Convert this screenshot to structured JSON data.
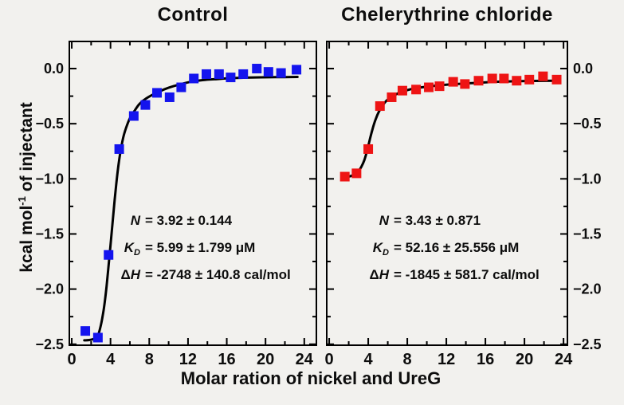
{
  "figure": {
    "background": "#f2f1ee",
    "axis_color": "#000000",
    "text_color": "#0d0d0d"
  },
  "xlabel": "Molar ration of nickel and UreG",
  "ylabel_parts": {
    "pre": "kcal mol",
    "sup": "-1",
    "post": " of injectant"
  },
  "chart_data": [
    {
      "type": "scatter",
      "title": "Control",
      "marker": "square",
      "marker_color": "#1414ee",
      "fit_line_color": "#000000",
      "xlim": [
        -0.25,
        25.25
      ],
      "ylim": [
        -2.509,
        0.246
      ],
      "x_ticks": {
        "major_values": [
          0,
          4,
          8,
          12,
          16,
          20,
          24
        ],
        "major_labels": [
          "0",
          "4",
          "8",
          "12",
          "16",
          "20",
          "24"
        ],
        "minor_values": [
          2,
          6,
          10,
          14,
          18,
          22
        ]
      },
      "y_ticks": {
        "labels_side": "left",
        "major_values": [
          0,
          -0.5,
          -1.0,
          -1.5,
          -2.0,
          -2.5
        ],
        "major_labels": [
          "0.0",
          "−0.5",
          "−1.0",
          "−1.5",
          "−2.0",
          "−2.5"
        ],
        "minor_values": [
          -0.25,
          -0.75,
          -1.25,
          -1.75,
          -2.25
        ]
      },
      "points": [
        [
          1.4,
          -2.38
        ],
        [
          2.7,
          -2.44
        ],
        [
          3.8,
          -1.69
        ],
        [
          4.9,
          -0.73
        ],
        [
          6.4,
          -0.43
        ],
        [
          7.6,
          -0.33
        ],
        [
          8.8,
          -0.22
        ],
        [
          10.1,
          -0.26
        ],
        [
          11.3,
          -0.17
        ],
        [
          12.6,
          -0.09
        ],
        [
          13.9,
          -0.05
        ],
        [
          15.2,
          -0.05
        ],
        [
          16.4,
          -0.08
        ],
        [
          17.7,
          -0.05
        ],
        [
          19.1,
          0.0
        ],
        [
          20.3,
          -0.03
        ],
        [
          21.6,
          -0.04
        ],
        [
          23.2,
          -0.01
        ]
      ],
      "fit_curve": [
        [
          1.3,
          -2.465
        ],
        [
          1.8,
          -2.462
        ],
        [
          2.3,
          -2.45
        ],
        [
          2.7,
          -2.42
        ],
        [
          3.0,
          -2.33
        ],
        [
          3.2,
          -2.24
        ],
        [
          3.4,
          -2.12
        ],
        [
          3.6,
          -1.97
        ],
        [
          3.8,
          -1.79
        ],
        [
          4.0,
          -1.6
        ],
        [
          4.2,
          -1.41
        ],
        [
          4.4,
          -1.22
        ],
        [
          4.6,
          -1.04
        ],
        [
          4.8,
          -0.89
        ],
        [
          5.0,
          -0.77
        ],
        [
          5.3,
          -0.63
        ],
        [
          5.6,
          -0.54
        ],
        [
          6.0,
          -0.45
        ],
        [
          6.5,
          -0.38
        ],
        [
          7.0,
          -0.32
        ],
        [
          7.7,
          -0.27
        ],
        [
          8.5,
          -0.23
        ],
        [
          9.5,
          -0.19
        ],
        [
          10.5,
          -0.16
        ],
        [
          12.0,
          -0.125
        ],
        [
          13.5,
          -0.105
        ],
        [
          15.0,
          -0.095
        ],
        [
          17.0,
          -0.085
        ],
        [
          19.0,
          -0.08
        ],
        [
          21.0,
          -0.078
        ],
        [
          23.3,
          -0.076
        ]
      ],
      "annotation": {
        "lines": [
          {
            "pre": "",
            "var": "N",
            "sub": "",
            "rest": "= 3.92 ± 0.144"
          },
          {
            "pre": "",
            "var": "K",
            "sub": "D",
            "rest": "= 5.99 ± 1.799 μM"
          },
          {
            "pre": "Δ",
            "var": "H",
            "sub": "",
            "rest": "= -2748 ± 140.8 cal/mol"
          }
        ]
      }
    },
    {
      "type": "scatter",
      "title": "Chelerythrine chloride",
      "marker": "square",
      "marker_color": "#ee1414",
      "fit_line_color": "#000000",
      "xlim": [
        -0.25,
        24.4
      ],
      "ylim": [
        -2.509,
        0.246
      ],
      "x_ticks": {
        "major_values": [
          0,
          4,
          8,
          12,
          16,
          20,
          24
        ],
        "major_labels": [
          "0",
          "4",
          "8",
          "12",
          "16",
          "20",
          "24"
        ],
        "minor_values": [
          2,
          6,
          10,
          14,
          18,
          22
        ]
      },
      "y_ticks": {
        "labels_side": "right",
        "major_values": [
          0,
          -0.5,
          -1.0,
          -1.5,
          -2.0,
          -2.5
        ],
        "major_labels": [
          "0.0",
          "−0.5",
          "−1.0",
          "−1.5",
          "−2.0",
          "−2.5"
        ],
        "minor_values": [
          -0.25,
          -0.75,
          -1.25,
          -1.75,
          -2.25
        ]
      },
      "points": [
        [
          1.6,
          -0.98
        ],
        [
          2.8,
          -0.95
        ],
        [
          4.0,
          -0.73
        ],
        [
          5.2,
          -0.34
        ],
        [
          6.4,
          -0.26
        ],
        [
          7.5,
          -0.2
        ],
        [
          8.9,
          -0.19
        ],
        [
          10.2,
          -0.17
        ],
        [
          11.3,
          -0.16
        ],
        [
          12.7,
          -0.12
        ],
        [
          13.9,
          -0.14
        ],
        [
          15.3,
          -0.11
        ],
        [
          16.7,
          -0.09
        ],
        [
          17.9,
          -0.09
        ],
        [
          19.2,
          -0.11
        ],
        [
          20.5,
          -0.1
        ],
        [
          21.9,
          -0.07
        ],
        [
          23.3,
          -0.1
        ]
      ],
      "fit_curve": [
        [
          1.3,
          -0.99
        ],
        [
          2.0,
          -0.98
        ],
        [
          2.5,
          -0.965
        ],
        [
          3.0,
          -0.93
        ],
        [
          3.3,
          -0.89
        ],
        [
          3.6,
          -0.83
        ],
        [
          3.9,
          -0.74
        ],
        [
          4.2,
          -0.63
        ],
        [
          4.5,
          -0.53
        ],
        [
          4.8,
          -0.45
        ],
        [
          5.1,
          -0.39
        ],
        [
          5.5,
          -0.33
        ],
        [
          6.0,
          -0.28
        ],
        [
          6.6,
          -0.245
        ],
        [
          7.3,
          -0.215
        ],
        [
          8.0,
          -0.195
        ],
        [
          9.0,
          -0.175
        ],
        [
          10.0,
          -0.165
        ],
        [
          11.5,
          -0.15
        ],
        [
          13.0,
          -0.14
        ],
        [
          15.0,
          -0.13
        ],
        [
          17.0,
          -0.12
        ],
        [
          19.0,
          -0.115
        ],
        [
          21.0,
          -0.112
        ],
        [
          23.3,
          -0.11
        ]
      ],
      "annotation": {
        "lines": [
          {
            "pre": "",
            "var": "N",
            "sub": "",
            "rest": "= 3.43 ± 0.871"
          },
          {
            "pre": "",
            "var": "K",
            "sub": "D",
            "rest": "= 52.16 ± 25.556 μM"
          },
          {
            "pre": "Δ",
            "var": "H",
            "sub": "",
            "rest": "= -1845 ± 581.7 cal/mol"
          }
        ]
      }
    }
  ]
}
